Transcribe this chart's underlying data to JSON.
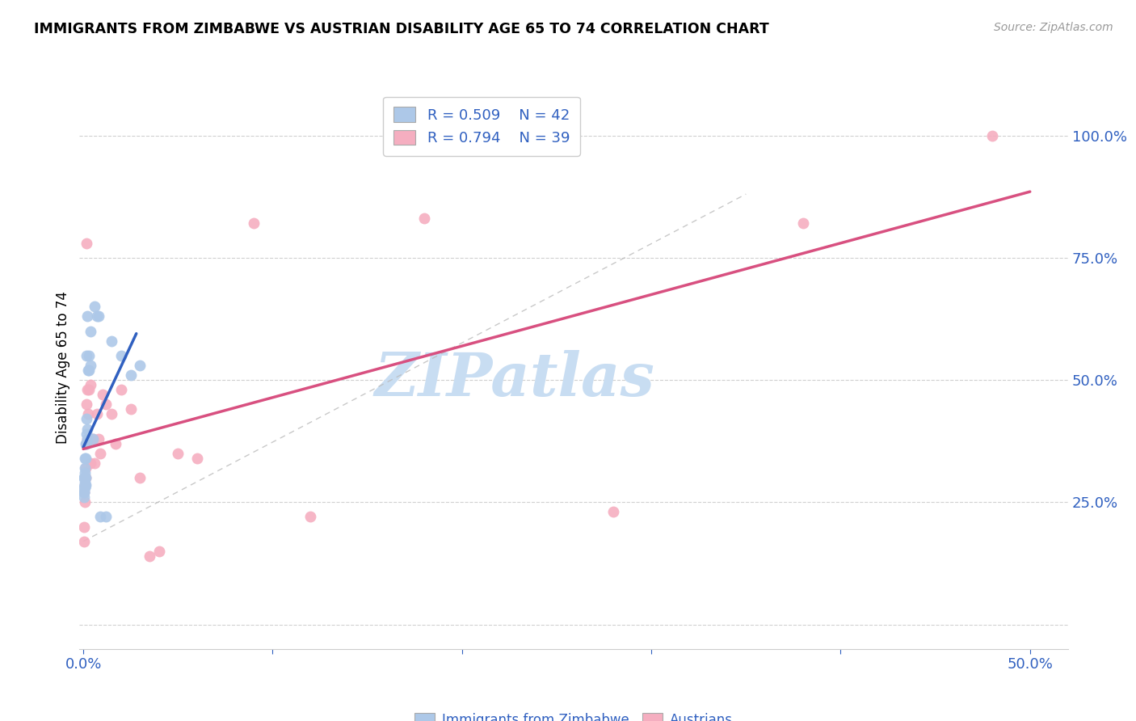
{
  "title": "IMMIGRANTS FROM ZIMBABWE VS AUSTRIAN DISABILITY AGE 65 TO 74 CORRELATION CHART",
  "source": "Source: ZipAtlas.com",
  "ylabel": "Disability Age 65 to 74",
  "blue_R": 0.509,
  "blue_N": 42,
  "pink_R": 0.794,
  "pink_N": 39,
  "blue_color": "#adc8e8",
  "pink_color": "#f5aec0",
  "blue_line_color": "#3060c0",
  "pink_line_color": "#d85080",
  "xlim": [
    -0.002,
    0.52
  ],
  "ylim": [
    -0.05,
    1.1
  ],
  "x_ticks": [
    0.0,
    0.1,
    0.2,
    0.3,
    0.4,
    0.5
  ],
  "x_tick_labels": [
    "0.0%",
    "",
    "",
    "",
    "",
    "50.0%"
  ],
  "y_ticks": [
    0.0,
    0.25,
    0.5,
    0.75,
    1.0
  ],
  "y_tick_labels": [
    "",
    "25.0%",
    "50.0%",
    "75.0%",
    "100.0%"
  ],
  "blue_scatter_x": [
    0.0002,
    0.0003,
    0.0004,
    0.0004,
    0.0005,
    0.0005,
    0.0006,
    0.0006,
    0.0007,
    0.0007,
    0.0008,
    0.0008,
    0.0009,
    0.001,
    0.001,
    0.001,
    0.0012,
    0.0012,
    0.0013,
    0.0013,
    0.0015,
    0.0015,
    0.0017,
    0.0018,
    0.002,
    0.002,
    0.0022,
    0.0025,
    0.003,
    0.003,
    0.004,
    0.004,
    0.005,
    0.006,
    0.007,
    0.008,
    0.009,
    0.012,
    0.015,
    0.02,
    0.025,
    0.03
  ],
  "blue_scatter_y": [
    0.27,
    0.26,
    0.28,
    0.3,
    0.27,
    0.3,
    0.28,
    0.3,
    0.28,
    0.3,
    0.285,
    0.32,
    0.29,
    0.285,
    0.31,
    0.34,
    0.285,
    0.3,
    0.34,
    0.37,
    0.39,
    0.42,
    0.37,
    0.55,
    0.38,
    0.4,
    0.63,
    0.52,
    0.52,
    0.55,
    0.53,
    0.6,
    0.38,
    0.65,
    0.63,
    0.63,
    0.22,
    0.22,
    0.58,
    0.55,
    0.51,
    0.53
  ],
  "pink_scatter_x": [
    0.0002,
    0.0004,
    0.0005,
    0.0007,
    0.0008,
    0.001,
    0.0012,
    0.0013,
    0.0015,
    0.0017,
    0.002,
    0.002,
    0.0025,
    0.003,
    0.003,
    0.004,
    0.004,
    0.005,
    0.006,
    0.007,
    0.008,
    0.009,
    0.01,
    0.012,
    0.015,
    0.017,
    0.02,
    0.025,
    0.03,
    0.035,
    0.04,
    0.05,
    0.06,
    0.09,
    0.12,
    0.18,
    0.28,
    0.38,
    0.48
  ],
  "pink_scatter_y": [
    0.17,
    0.2,
    0.27,
    0.25,
    0.3,
    0.285,
    0.32,
    0.3,
    0.78,
    0.45,
    0.38,
    0.48,
    0.43,
    0.38,
    0.48,
    0.33,
    0.49,
    0.38,
    0.33,
    0.43,
    0.38,
    0.35,
    0.47,
    0.45,
    0.43,
    0.37,
    0.48,
    0.44,
    0.3,
    0.14,
    0.15,
    0.35,
    0.34,
    0.82,
    0.22,
    0.83,
    0.23,
    0.82,
    1.0
  ],
  "dash_line_x": [
    0.0,
    0.35
  ],
  "dash_line_y": [
    0.17,
    0.88
  ],
  "grid_color": "#d0d0d0",
  "watermark": "ZIPatlas"
}
